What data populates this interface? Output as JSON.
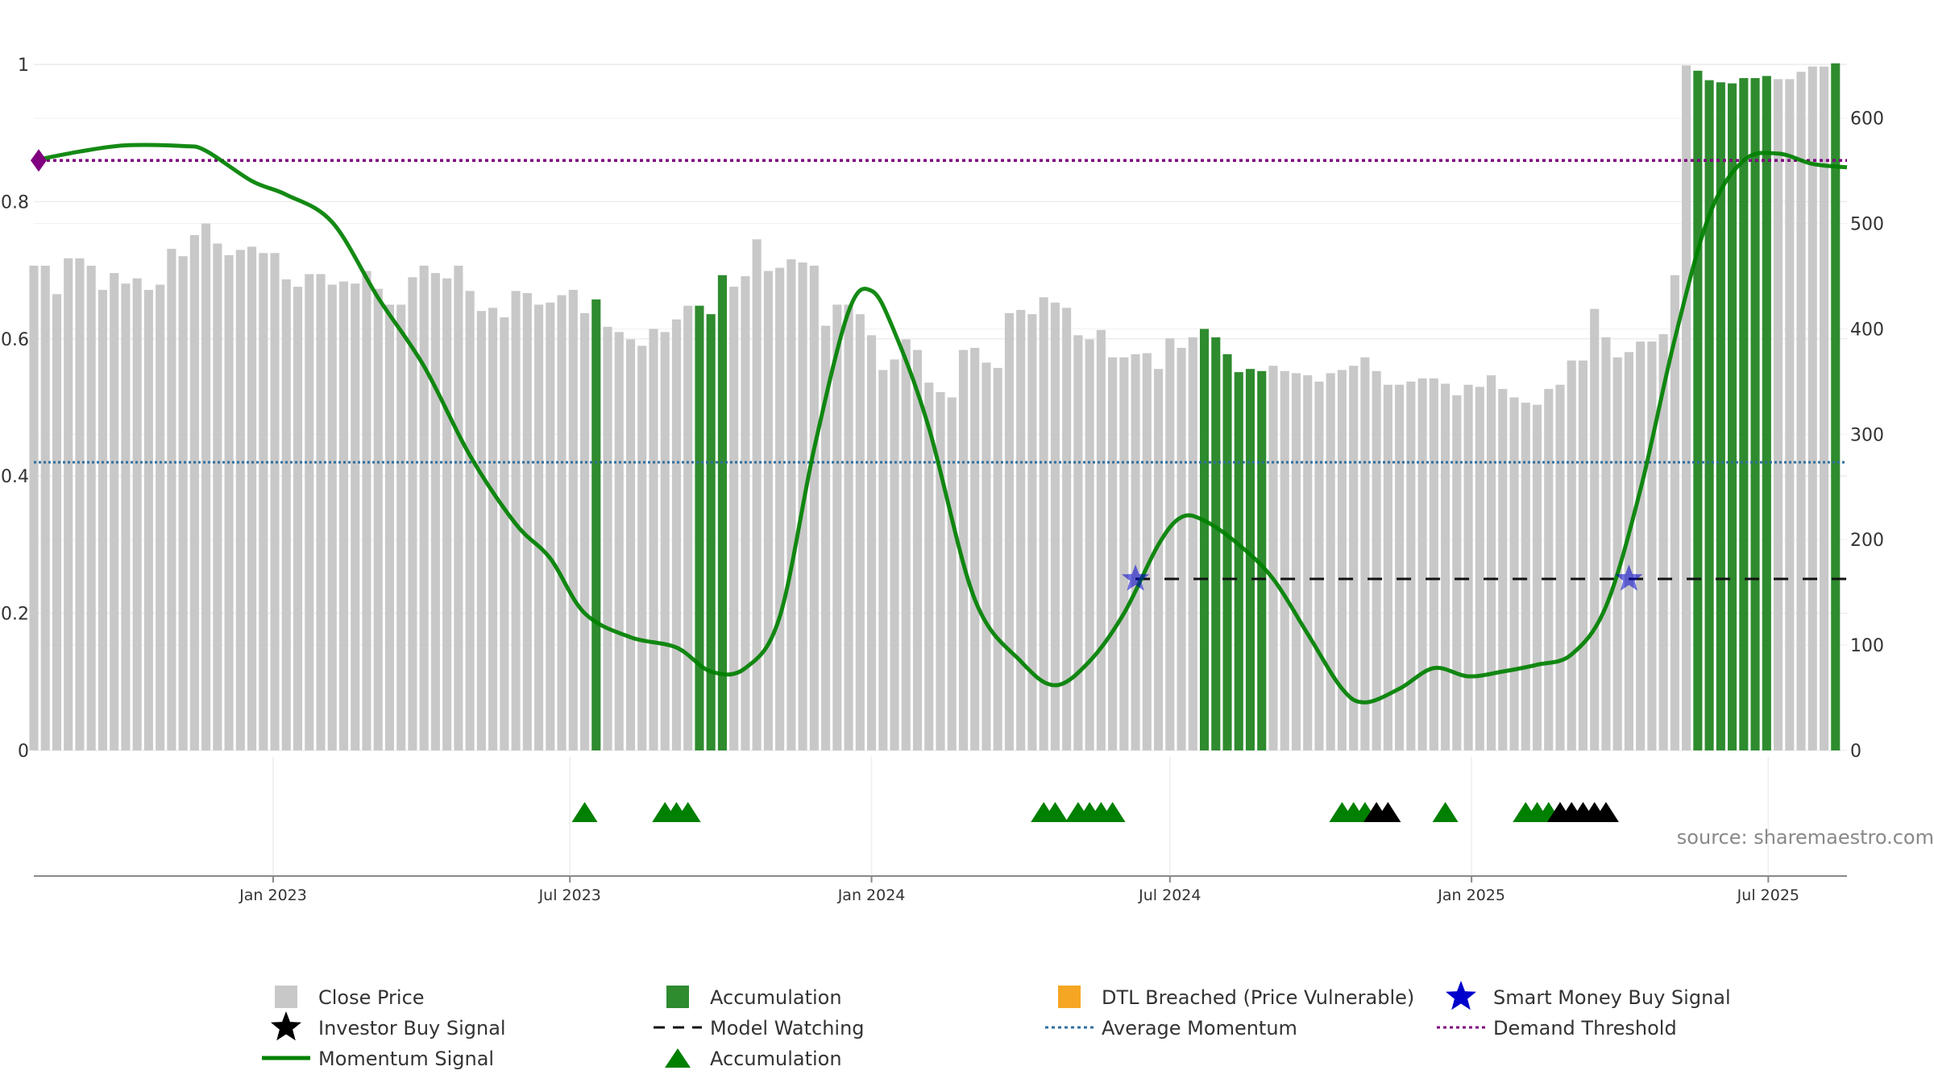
{
  "source_label": "source: sharemaestro.com",
  "colors": {
    "close_price": "#c8c8c8",
    "accumulation_bar": "#2e8b2e",
    "dtl_breached": "#ffd27f",
    "momentum": "#008000",
    "average_momentum": "#2f6f9f",
    "demand_threshold": "#800080",
    "model_watching": "#111111",
    "smart_money_star": "#0000cc",
    "investor_triangle": "#000000"
  },
  "legend": [
    {
      "label": "Close Price",
      "symbol": "gray-square"
    },
    {
      "label": "Accumulation",
      "symbol": "green-square"
    },
    {
      "label": "DTL Breached (Price Vulnerable)",
      "symbol": "orange-square"
    },
    {
      "label": "Smart Money Buy Signal",
      "symbol": "blue-star"
    },
    {
      "label": "Investor Buy Signal",
      "symbol": "black-star"
    },
    {
      "label": "Model Watching",
      "symbol": "dashed-black-line"
    },
    {
      "label": "Average Momentum",
      "symbol": "dotted-blue-line"
    },
    {
      "label": "Demand Threshold",
      "symbol": "dotted-purple-line"
    },
    {
      "label": "Momentum Signal",
      "symbol": "green-line"
    },
    {
      "label": "Accumulation",
      "symbol": "green-triangle"
    }
  ],
  "chart_data": {
    "type": "bar",
    "title": "",
    "x_range": [
      "2022-08-08",
      "2025-08-18"
    ],
    "x_ticks": [
      {
        "date": "2023-01-01",
        "label": "Jan 2023"
      },
      {
        "date": "2023-07-01",
        "label": "Jul 2023"
      },
      {
        "date": "2024-01-01",
        "label": "Jan 2024"
      },
      {
        "date": "2024-07-01",
        "label": "Jul 2024"
      },
      {
        "date": "2025-01-01",
        "label": "Jan 2025"
      },
      {
        "date": "2025-07-01",
        "label": "Jul 2025"
      }
    ],
    "y_left": {
      "range": [
        0,
        1
      ],
      "ticks": [
        "0",
        "0.2",
        "0.4",
        "0.6",
        "0.8",
        "1"
      ]
    },
    "y_right": {
      "range": [
        0,
        650
      ],
      "ticks": [
        "0",
        "100",
        "200",
        "300",
        "400",
        "500",
        "600"
      ]
    },
    "series": [
      {
        "name": "Close Price",
        "axis": "right",
        "start_week": "2022-08-08",
        "interval": "weekly",
        "values": [
          460,
          460,
          433,
          467,
          467,
          460,
          437,
          453,
          443,
          448,
          437,
          442,
          476,
          469,
          489,
          500,
          481,
          470,
          475,
          478,
          472,
          472,
          447,
          440,
          452,
          452,
          442,
          445,
          443,
          455,
          438,
          423,
          423,
          449,
          460,
          453,
          448,
          460,
          436,
          417,
          420,
          411,
          436,
          434,
          423,
          425,
          432,
          437,
          415,
          428,
          402,
          397,
          390,
          384,
          400,
          397,
          409,
          422,
          422,
          414,
          451,
          440,
          450,
          485,
          455,
          458,
          466,
          463,
          460,
          403,
          423,
          423,
          414,
          394,
          361,
          371,
          390,
          380,
          349,
          340,
          335,
          380,
          382,
          368,
          363,
          415,
          418,
          414,
          430,
          425,
          420,
          394,
          390,
          399,
          373,
          373,
          376,
          377,
          362,
          391,
          382,
          392,
          400,
          392,
          376,
          359,
          362,
          360,
          365,
          360,
          358,
          356,
          350,
          358,
          361,
          365,
          373,
          360,
          347,
          347,
          350,
          353,
          353,
          348,
          337,
          347,
          345,
          356,
          343,
          335,
          330,
          328,
          343,
          347,
          370,
          370,
          419,
          392,
          373,
          378,
          388,
          388,
          395,
          451,
          650,
          645,
          636,
          634,
          633,
          638,
          638,
          640,
          637,
          637,
          644,
          649,
          649,
          652
        ],
        "status": "cccccccccccccccccccccccccccccccccccccccccccccccccaccccccccaaacccccccccccccccccccccccccccccccccccccccccaaaaaacccccccccccccccccccccccccccccccccccccaaaaaaacccccacccaaaaaaaaacccccccddddddddddddddd"
      },
      {
        "name": "Momentum Signal",
        "axis": "left",
        "points": [
          [
            "2022-08-08",
            0.86
          ],
          [
            "2022-09-05",
            0.873
          ],
          [
            "2022-10-03",
            0.882
          ],
          [
            "2022-11-07",
            0.881
          ],
          [
            "2022-11-21",
            0.874
          ],
          [
            "2022-12-19",
            0.83
          ],
          [
            "2023-01-09",
            0.81
          ],
          [
            "2023-02-06",
            0.77
          ],
          [
            "2023-03-06",
            0.66
          ],
          [
            "2023-04-03",
            0.56
          ],
          [
            "2023-05-01",
            0.43
          ],
          [
            "2023-05-29",
            0.33
          ],
          [
            "2023-06-19",
            0.28
          ],
          [
            "2023-07-10",
            0.2
          ],
          [
            "2023-08-07",
            0.165
          ],
          [
            "2023-09-04",
            0.15
          ],
          [
            "2023-09-25",
            0.115
          ],
          [
            "2023-10-16",
            0.12
          ],
          [
            "2023-11-06",
            0.195
          ],
          [
            "2023-11-27",
            0.44
          ],
          [
            "2023-12-18",
            0.64
          ],
          [
            "2024-01-01",
            0.67
          ],
          [
            "2024-01-15",
            0.61
          ],
          [
            "2024-02-05",
            0.47
          ],
          [
            "2024-03-04",
            0.22
          ],
          [
            "2024-04-01",
            0.13
          ],
          [
            "2024-04-22",
            0.095
          ],
          [
            "2024-05-13",
            0.13
          ],
          [
            "2024-06-03",
            0.2
          ],
          [
            "2024-06-24",
            0.3
          ],
          [
            "2024-07-08",
            0.34
          ],
          [
            "2024-07-22",
            0.335
          ],
          [
            "2024-08-12",
            0.3
          ],
          [
            "2024-09-02",
            0.25
          ],
          [
            "2024-09-23",
            0.17
          ],
          [
            "2024-10-14",
            0.09
          ],
          [
            "2024-10-28",
            0.07
          ],
          [
            "2024-11-18",
            0.09
          ],
          [
            "2024-12-09",
            0.12
          ],
          [
            "2024-12-30",
            0.108
          ],
          [
            "2025-01-20",
            0.115
          ],
          [
            "2025-02-10",
            0.125
          ],
          [
            "2025-03-03",
            0.14
          ],
          [
            "2025-03-24",
            0.21
          ],
          [
            "2025-04-14",
            0.38
          ],
          [
            "2025-05-05",
            0.6
          ],
          [
            "2025-05-26",
            0.78
          ],
          [
            "2025-06-16",
            0.86
          ],
          [
            "2025-07-07",
            0.87
          ],
          [
            "2025-07-28",
            0.855
          ],
          [
            "2025-08-18",
            0.85
          ]
        ]
      },
      {
        "name": "Average Momentum",
        "axis": "left",
        "value": 0.42
      },
      {
        "name": "Demand Threshold",
        "axis": "left",
        "value": 0.86
      },
      {
        "name": "Model Watching",
        "axis": "left",
        "value": 0.25,
        "from": "2024-06-10",
        "to": "2025-08-18"
      },
      {
        "name": "Smart Money Buy Signal",
        "axis": "left",
        "points": [
          [
            "2024-06-10",
            0.25
          ],
          [
            "2025-04-07",
            0.25
          ]
        ]
      },
      {
        "name": "Accumulation",
        "marker": "triangle",
        "dates": [
          "2023-07-10",
          "2023-08-28",
          "2023-09-04",
          "2023-09-11",
          "2024-04-15",
          "2024-04-22",
          "2024-05-06",
          "2024-05-13",
          "2024-05-20",
          "2024-05-27",
          "2024-10-14",
          "2024-10-21",
          "2024-10-28",
          "2024-12-16",
          "2025-02-03",
          "2025-02-10",
          "2025-02-17"
        ]
      },
      {
        "name": "Investor Buy Signal",
        "marker": "triangle",
        "dates": [
          "2024-11-04",
          "2024-11-11",
          "2025-02-24",
          "2025-03-03",
          "2025-03-10",
          "2025-03-17",
          "2025-03-24"
        ]
      }
    ]
  }
}
